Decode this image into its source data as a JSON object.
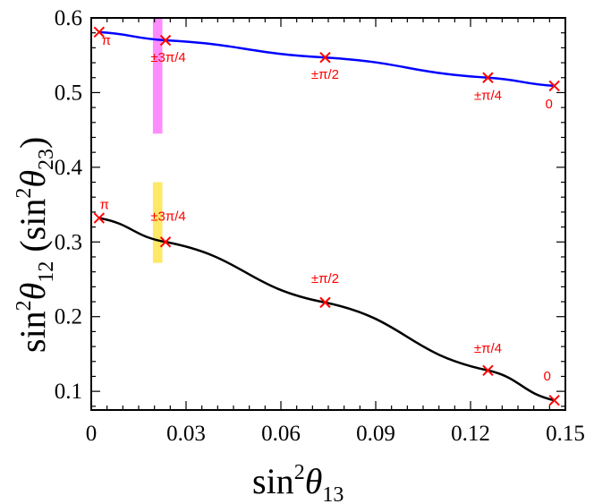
{
  "chart_data": {
    "type": "line",
    "title": "",
    "xlabel": {
      "base": "sin",
      "sup": "2",
      "var": "θ",
      "sub": "13"
    },
    "ylabel": {
      "base": "sin",
      "sup": "2",
      "var": "θ",
      "sub": "12",
      "paren_sub": "23"
    },
    "xlim": [
      0,
      0.15
    ],
    "ylim": [
      0.075,
      0.6
    ],
    "xticks": [
      0,
      0.03,
      0.06,
      0.09,
      0.12,
      0.15
    ],
    "xtick_labels": [
      "0",
      "0.03",
      "0.06",
      "0.09",
      "0.12",
      "0.15"
    ],
    "yticks": [
      0.1,
      0.2,
      0.3,
      0.4,
      0.5,
      0.6
    ],
    "ytick_labels": [
      "0.1",
      "0.2",
      "0.3",
      "0.4",
      "0.5",
      "0.6"
    ],
    "series": [
      {
        "name": "sin2theta23",
        "color": "#0000ff",
        "x": [
          0.0025,
          0.0235,
          0.074,
          0.1255,
          0.1465
        ],
        "y": [
          0.581,
          0.57,
          0.547,
          0.52,
          0.509
        ],
        "point_labels": [
          "π",
          "±3π/4",
          "±π/2",
          "±π/4",
          "0"
        ]
      },
      {
        "name": "sin2theta12",
        "color": "#000000",
        "x": [
          0.0025,
          0.0235,
          0.074,
          0.1255,
          0.1465
        ],
        "y": [
          0.332,
          0.3,
          0.219,
          0.128,
          0.088
        ],
        "point_labels": [
          "π",
          "±3π/4",
          "±π/2",
          "±π/4",
          "0"
        ]
      }
    ],
    "bands": [
      {
        "name": "theta23-band",
        "color": "#ff66ff",
        "x_range": [
          0.0195,
          0.0225
        ],
        "y_range": [
          0.445,
          0.6
        ]
      },
      {
        "name": "theta12-band",
        "color": "#ffe033",
        "x_range": [
          0.0195,
          0.0225
        ],
        "y_range": [
          0.272,
          0.38
        ]
      }
    ],
    "marker_color": "#ff0000"
  }
}
